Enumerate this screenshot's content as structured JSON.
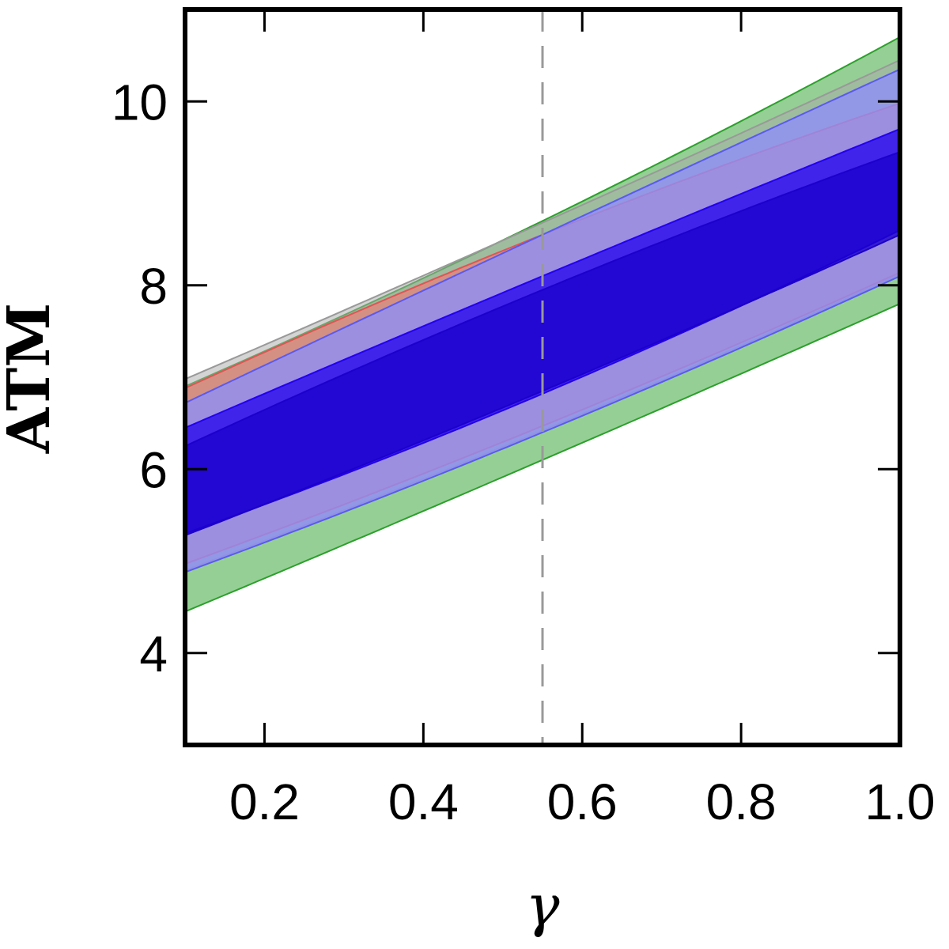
{
  "chart_data": {
    "type": "area",
    "title": "",
    "xlabel": "γ",
    "ylabel": "ATM",
    "xlim": [
      0.1,
      1.0
    ],
    "ylim": [
      3.0,
      11.0
    ],
    "xticks": [
      0.2,
      0.4,
      0.6,
      0.8,
      1.0
    ],
    "xtick_labels": [
      "0.2",
      "0.4",
      "0.6",
      "0.8",
      "1.0"
    ],
    "yticks": [
      4,
      6,
      8,
      10
    ],
    "ytick_labels": [
      "4",
      "6",
      "8",
      "10"
    ],
    "grid": false,
    "legend": "none",
    "vline": {
      "x": 0.55,
      "style": "dashed",
      "color": "#999999"
    },
    "x": [
      0.1,
      0.55,
      1.0
    ],
    "bands": [
      {
        "color": "#2ca02c",
        "fill_opacity": 0.5,
        "edge_color": "#2ca02c",
        "lower": [
          4.45,
          6.1,
          7.8
        ],
        "upper": [
          6.9,
          8.7,
          10.7
        ]
      },
      {
        "color": "#aaaaaa",
        "fill_opacity": 0.5,
        "edge_color": "#999999",
        "lower": [
          4.9,
          6.42,
          8.12
        ],
        "upper": [
          6.98,
          8.68,
          10.45
        ]
      },
      {
        "color": "#ff6b6b",
        "fill_opacity": 0.55,
        "edge_color": "#e05555",
        "lower": [
          4.97,
          6.47,
          8.14
        ],
        "upper": [
          6.88,
          8.55,
          9.98
        ]
      },
      {
        "color": "#8f8ff8",
        "fill_opacity": 0.8,
        "edge_color": "#5a5af0",
        "lower": [
          4.88,
          6.4,
          8.1
        ],
        "upper": [
          6.72,
          8.55,
          10.35
        ]
      },
      {
        "color": "#2200ee",
        "fill_opacity": 0.75,
        "edge_color": "#2200ee",
        "lower": [
          5.3,
          6.82,
          8.6
        ],
        "upper": [
          6.45,
          8.1,
          9.7
        ]
      },
      {
        "color": "#1c00cc",
        "fill_opacity": 0.8,
        "edge_color": "#1c00cc",
        "lower": [
          5.28,
          6.85,
          8.55
        ],
        "upper": [
          6.25,
          7.95,
          9.45
        ]
      }
    ]
  }
}
